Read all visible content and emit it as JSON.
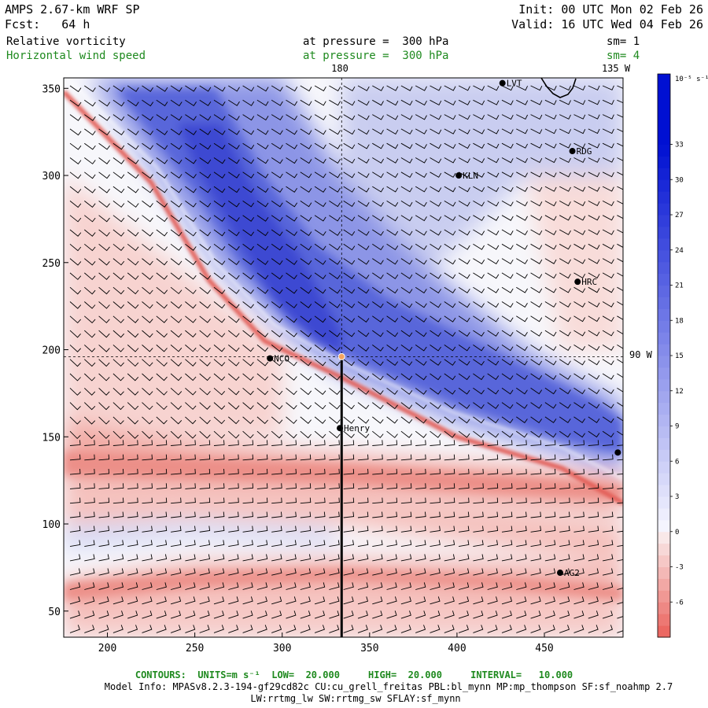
{
  "header": {
    "model": "AMPS 2.67-km WRF SP",
    "init": "Init: 00 UTC Mon 02 Feb 26",
    "fcst": "Fcst:   64 h",
    "valid": "Valid: 16 UTC Wed 04 Feb 26",
    "field1": {
      "name": "Relative vorticity",
      "pressure": "at pressure =  300 hPa",
      "smooth": "sm= 1"
    },
    "field2": {
      "name": "Horizontal wind speed",
      "pressure": "at pressure =  300 hPa",
      "smooth": "sm= 4"
    }
  },
  "map_labels": {
    "lon_180": "180",
    "lon_135w": "135 W",
    "lon_90w": "90 W"
  },
  "stations": [
    {
      "id": "LVT",
      "x": 426,
      "y": 353
    },
    {
      "id": "RDG",
      "x": 466,
      "y": 314
    },
    {
      "id": "KLN",
      "x": 401,
      "y": 300
    },
    {
      "id": "HRC",
      "x": 469,
      "y": 239
    },
    {
      "id": "NCO",
      "x": 293,
      "y": 195
    },
    {
      "id": "Henry",
      "x": 333,
      "y": 155
    },
    {
      "id": "AG2",
      "x": 459,
      "y": 72
    },
    {
      "id": "",
      "x": 492,
      "y": 141
    }
  ],
  "colorbar": {
    "unit_label": "10⁻⁵ s⁻¹",
    "ticks": [
      "33",
      "30",
      "27",
      "24",
      "21",
      "18",
      "15",
      "12",
      "9",
      "6",
      "3",
      "0",
      "-3",
      "-6"
    ],
    "min": -9,
    "max": 39
  },
  "footer": {
    "contours": "CONTOURS:  UNITS=m s⁻¹  LOW=  20.000     HIGH=  20.000     INTERVAL=   10.000",
    "model_info": "Model Info: MPASv8.2.3-194-gf29cd82c CU:cu_grell_freitas PBL:bl_mynn MP:mp_thompson SF:sf_noahmp 2.7",
    "model_info2": "LW:rrtmg_lw SW:rrtmg_sw SFLAY:sf_mynn"
  },
  "chart_data": {
    "type": "heatmap",
    "xlim": [
      175,
      495
    ],
    "ylim": [
      35,
      356
    ],
    "x_ticks": [
      200,
      250,
      300,
      350,
      400,
      450
    ],
    "y_ticks": [
      50,
      100,
      150,
      200,
      250,
      300,
      350
    ],
    "crosshair": {
      "x": 334,
      "y": 196
    },
    "cross_section_line": {
      "x": 334,
      "y_from": 35,
      "y_to": 196
    },
    "features": [
      {
        "sign": "positive",
        "description_pts": [
          [
            175,
            352
          ],
          [
            230,
            300
          ],
          [
            265,
            245
          ],
          [
            300,
            210
          ],
          [
            334,
            190
          ],
          [
            400,
            160
          ],
          [
            460,
            140
          ],
          [
            495,
            120
          ]
        ],
        "peak": 30
      },
      {
        "sign": "negative",
        "description_pts": [
          [
            175,
            348
          ],
          [
            225,
            296
          ],
          [
            258,
            240
          ],
          [
            290,
            205
          ],
          [
            334,
            184
          ],
          [
            400,
            150
          ],
          [
            460,
            132
          ],
          [
            495,
            112
          ]
        ],
        "peak": -8
      },
      {
        "sign": "negative",
        "description_pts": [
          [
            175,
            152
          ],
          [
            250,
            135
          ],
          [
            334,
            128
          ],
          [
            420,
            122
          ],
          [
            495,
            118
          ]
        ],
        "peak": -6
      },
      {
        "sign": "negative",
        "description_pts": [
          [
            175,
            112
          ],
          [
            250,
            110
          ],
          [
            334,
            108
          ],
          [
            420,
            96
          ],
          [
            495,
            84
          ]
        ],
        "peak": -5
      },
      {
        "sign": "negative",
        "description_pts": [
          [
            175,
            56
          ],
          [
            250,
            66
          ],
          [
            334,
            70
          ],
          [
            420,
            66
          ],
          [
            495,
            52
          ]
        ],
        "peak": -7
      },
      {
        "sign": "positive",
        "description_pts": [
          [
            175,
            92
          ],
          [
            250,
            98
          ],
          [
            330,
            90
          ]
        ],
        "peak": 5
      },
      {
        "sign": "positive",
        "description_pts": [
          [
            175,
            44
          ],
          [
            250,
            44
          ],
          [
            334,
            42
          ]
        ],
        "peak": 3
      }
    ]
  }
}
